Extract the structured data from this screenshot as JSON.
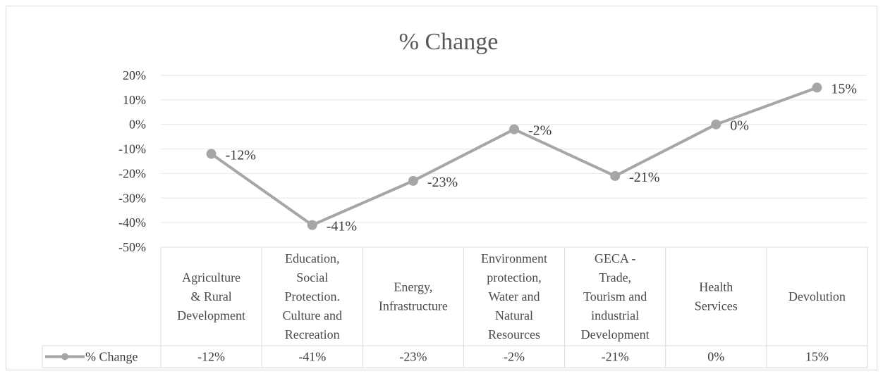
{
  "chart_data": {
    "type": "line",
    "title": "% Change",
    "categories": [
      "Agriculture & Rural Development",
      "Education, Social Protection. Culture and Recreation",
      "Energy, Infrastructure",
      "Environment protection, Water and Natural Resources",
      "GECA - Trade, Tourism and industrial Development",
      "Health Services",
      "Devolution"
    ],
    "category_lines": [
      [
        "Agriculture",
        "& Rural",
        "Development"
      ],
      [
        "Education,",
        "Social",
        "Protection.",
        "Culture and",
        "Recreation"
      ],
      [
        "Energy,",
        "Infrastructure"
      ],
      [
        "Environment",
        "protection,",
        "Water and",
        "Natural",
        "Resources"
      ],
      [
        "GECA -",
        "Trade,",
        "Tourism and",
        "industrial",
        "Development"
      ],
      [
        "Health",
        "Services"
      ],
      [
        "Devolution"
      ]
    ],
    "series": [
      {
        "name": "% Change",
        "values": [
          -12,
          -41,
          -23,
          -2,
          -21,
          0,
          15
        ],
        "labels": [
          "-12%",
          "-41%",
          "-23%",
          "-2%",
          "-21%",
          "0%",
          "15%"
        ]
      }
    ],
    "yticks": [
      "20%",
      "10%",
      "0%",
      "-10%",
      "-20%",
      "-30%",
      "-40%",
      "-50%"
    ],
    "ylim": [
      -50,
      20
    ],
    "ytick_step": 10,
    "grid": true,
    "data_table": true,
    "line_color": "#a6a6a6",
    "grid_color": "#e6e6e6"
  }
}
